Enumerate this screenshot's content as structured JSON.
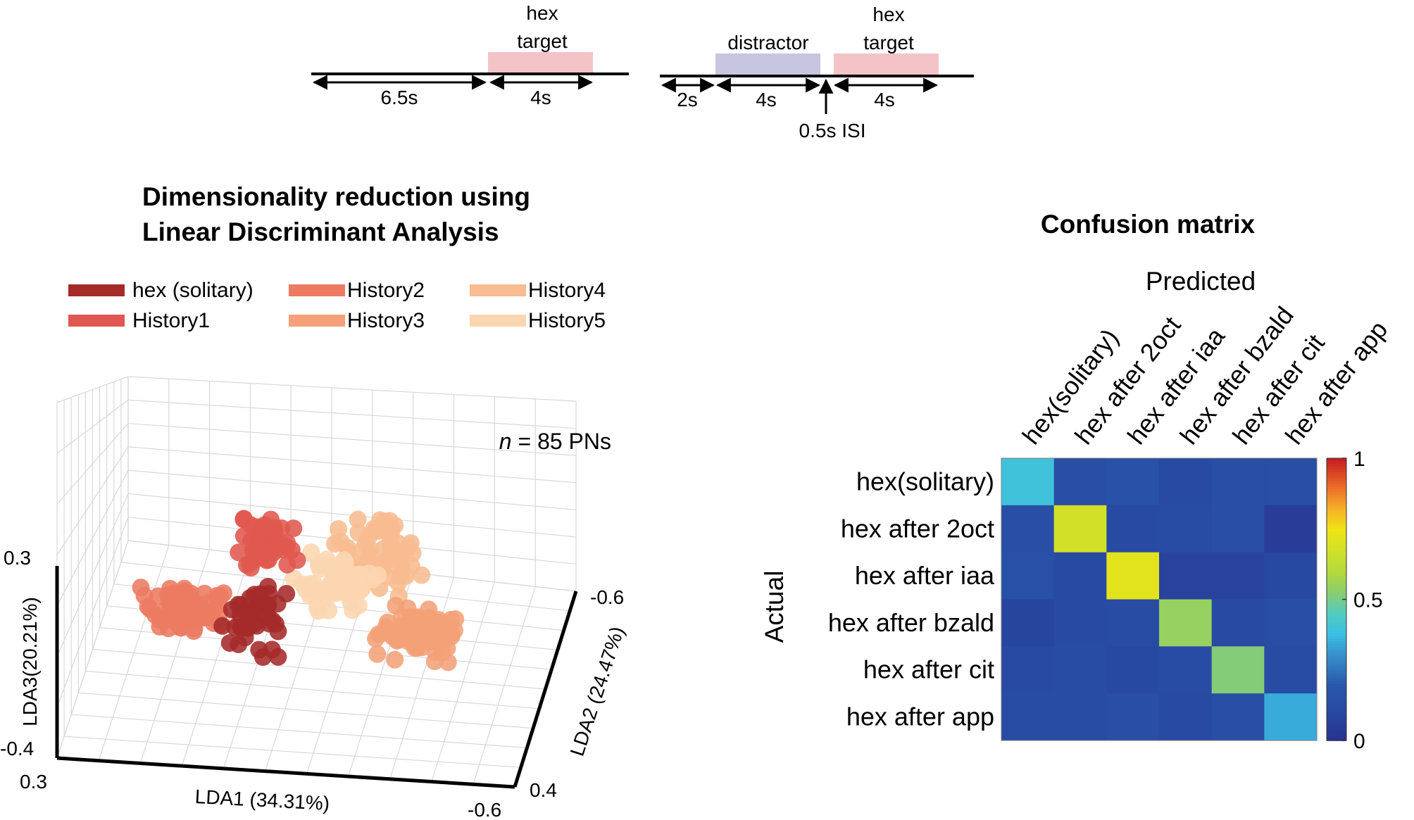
{
  "timeline": {
    "left": {
      "stim_label_1": "hex",
      "stim_label_2": "target",
      "stim_color": "#f4c3c8",
      "dur_pre": "6.5s",
      "dur_stim": "4s"
    },
    "right": {
      "distractor_label": "distractor",
      "distractor_color": "#c6c6e0",
      "target_label_1": "hex",
      "target_label_2": "target",
      "target_color": "#f4c3c8",
      "dur_pre": "2s",
      "dur_distractor": "4s",
      "dur_target": "4s",
      "isi_label": "0.5s ISI"
    }
  },
  "panels": {
    "lda_title_1": "Dimensionality reduction using",
    "lda_title_2": "Linear Discriminant Analysis",
    "n_label_italic": "n",
    "n_label_rest": " = 85 PNs",
    "cm_title": "Confusion matrix"
  },
  "chart_data": [
    {
      "type": "scatter",
      "projection": "3d",
      "legend": [
        {
          "name": "hex (solitary)",
          "color": "#a52a2a"
        },
        {
          "name": "History1",
          "color": "#e0584f"
        },
        {
          "name": "History2",
          "color": "#ec7b62"
        },
        {
          "name": "History3",
          "color": "#f4a078"
        },
        {
          "name": "History4",
          "color": "#f7bc8f"
        },
        {
          "name": "History5",
          "color": "#fad6b0"
        }
      ],
      "legend_placement": "top",
      "xlabel": "LDA1 (34.31%)",
      "ylabel": "LDA2 (24.47%)",
      "zlabel": "LDA3(20.21%)",
      "x_ticks": [
        "0.3",
        "-0.6"
      ],
      "y_ticks": [
        "-0.6",
        "0.4"
      ],
      "z_ticks": [
        "0.3",
        "-0.4"
      ],
      "xlim": [
        0.3,
        -0.6
      ],
      "ylim": [
        -0.6,
        0.4
      ],
      "zlim": [
        -0.4,
        0.3
      ],
      "grid": true
    },
    {
      "type": "heatmap",
      "xlabel": "Predicted",
      "ylabel": "Actual",
      "categories": [
        "hex(solitary)",
        "hex after 2oct",
        "hex after iaa",
        "hex after bzald",
        "hex after cit",
        "hex after app"
      ],
      "values": [
        [
          0.4,
          0.14,
          0.16,
          0.12,
          0.14,
          0.14
        ],
        [
          0.14,
          0.68,
          0.12,
          0.13,
          0.14,
          0.05
        ],
        [
          0.15,
          0.12,
          0.72,
          0.08,
          0.08,
          0.11
        ],
        [
          0.09,
          0.12,
          0.13,
          0.55,
          0.12,
          0.14
        ],
        [
          0.12,
          0.13,
          0.11,
          0.13,
          0.52,
          0.13
        ],
        [
          0.13,
          0.13,
          0.14,
          0.12,
          0.14,
          0.35
        ]
      ],
      "colorbar_ticks": [
        "0",
        "0.5",
        "1"
      ],
      "colorbar_range": [
        0,
        1
      ]
    }
  ]
}
